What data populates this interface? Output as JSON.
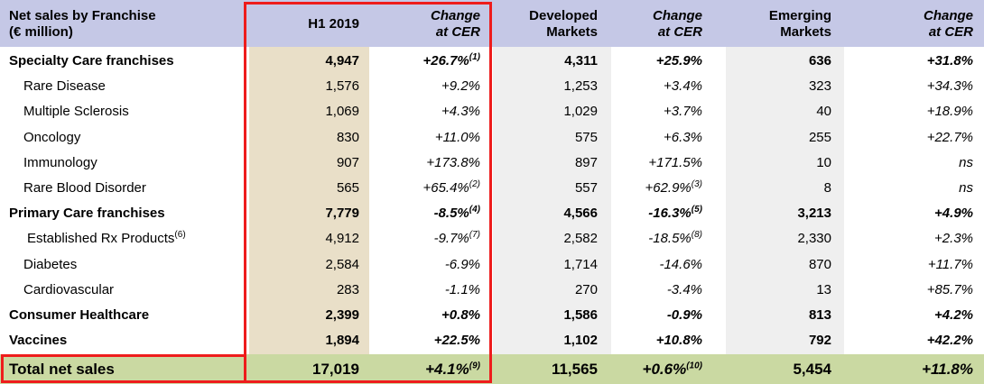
{
  "header": {
    "title_line1": "Net sales by Franchise",
    "title_line2": "(€ million)",
    "col_h1": "H1 2019",
    "col_change_line1": "Change",
    "col_change_line2": "at CER",
    "col_dev_line1": "Developed",
    "col_dev_line2": "Markets",
    "col_em_line1": "Emerging",
    "col_em_line2": "Markets"
  },
  "colors": {
    "header_bg": "#c5c8e6",
    "h1_column_bg": "#e9dfc8",
    "markets_column_bg": "#efefef",
    "total_row_bg": "#cad9a2",
    "highlight_box": "#ee1c1c"
  },
  "rows": [
    {
      "label": "Specialty Care franchises",
      "label_sup": "",
      "h1": "4,947",
      "h1_change": "+26.7%",
      "h1_change_sup": "(1)",
      "dev": "4,311",
      "dev_change": "+25.9%",
      "dev_change_sup": "",
      "em": "636",
      "em_change": "+31.8%",
      "bold": true
    },
    {
      "label": "Rare Disease",
      "label_sup": "",
      "h1": "1,576",
      "h1_change": "+9.2%",
      "h1_change_sup": "",
      "dev": "1,253",
      "dev_change": "+3.4%",
      "dev_change_sup": "",
      "em": "323",
      "em_change": "+34.3%",
      "bold": false
    },
    {
      "label": "Multiple Sclerosis",
      "label_sup": "",
      "h1": "1,069",
      "h1_change": "+4.3%",
      "h1_change_sup": "",
      "dev": "1,029",
      "dev_change": "+3.7%",
      "dev_change_sup": "",
      "em": "40",
      "em_change": "+18.9%",
      "bold": false
    },
    {
      "label": "Oncology",
      "label_sup": "",
      "h1": "830",
      "h1_change": "+11.0%",
      "h1_change_sup": "",
      "dev": "575",
      "dev_change": "+6.3%",
      "dev_change_sup": "",
      "em": "255",
      "em_change": "+22.7%",
      "bold": false
    },
    {
      "label": "Immunology",
      "label_sup": "",
      "h1": "907",
      "h1_change": "+173.8%",
      "h1_change_sup": "",
      "dev": "897",
      "dev_change": "+171.5%",
      "dev_change_sup": "",
      "em": "10",
      "em_change": "ns",
      "bold": false
    },
    {
      "label": "Rare Blood Disorder",
      "label_sup": "",
      "h1": "565",
      "h1_change": "+65.4%",
      "h1_change_sup": "(2)",
      "dev": "557",
      "dev_change": "+62.9%",
      "dev_change_sup": "(3)",
      "em": "8",
      "em_change": "ns",
      "bold": false
    },
    {
      "label": "Primary Care franchises",
      "label_sup": "",
      "h1": "7,779",
      "h1_change": "-8.5%",
      "h1_change_sup": "(4)",
      "dev": "4,566",
      "dev_change": "-16.3%",
      "dev_change_sup": "(5)",
      "em": "3,213",
      "em_change": "+4.9%",
      "bold": true
    },
    {
      "label": "Established Rx Products",
      "label_sup": "(6)",
      "h1": "4,912",
      "h1_change": "-9.7%",
      "h1_change_sup": "(7)",
      "dev": "2,582",
      "dev_change": "-18.5%",
      "dev_change_sup": "(8)",
      "em": "2,330",
      "em_change": "+2.3%",
      "bold": false
    },
    {
      "label": "Diabetes",
      "label_sup": "",
      "h1": "2,584",
      "h1_change": "-6.9%",
      "h1_change_sup": "",
      "dev": "1,714",
      "dev_change": "-14.6%",
      "dev_change_sup": "",
      "em": "870",
      "em_change": "+11.7%",
      "bold": false
    },
    {
      "label": "Cardiovascular",
      "label_sup": "",
      "h1": "283",
      "h1_change": "-1.1%",
      "h1_change_sup": "",
      "dev": "270",
      "dev_change": "-3.4%",
      "dev_change_sup": "",
      "em": "13",
      "em_change": "+85.7%",
      "bold": false
    },
    {
      "label": "Consumer Healthcare",
      "label_sup": "",
      "h1": "2,399",
      "h1_change": "+0.8%",
      "h1_change_sup": "",
      "dev": "1,586",
      "dev_change": "-0.9%",
      "dev_change_sup": "",
      "em": "813",
      "em_change": "+4.2%",
      "bold": true
    },
    {
      "label": "Vaccines",
      "label_sup": "",
      "h1": "1,894",
      "h1_change": "+22.5%",
      "h1_change_sup": "",
      "dev": "1,102",
      "dev_change": "+10.8%",
      "dev_change_sup": "",
      "em": "792",
      "em_change": "+42.2%",
      "bold": true
    }
  ],
  "total": {
    "label": "Total net sales",
    "h1": "17,019",
    "h1_change": "+4.1%",
    "h1_change_sup": "(9)",
    "dev": "11,565",
    "dev_change": "+0.6%",
    "dev_change_sup": "(10)",
    "em": "5,454",
    "em_change": "+11.8%"
  }
}
